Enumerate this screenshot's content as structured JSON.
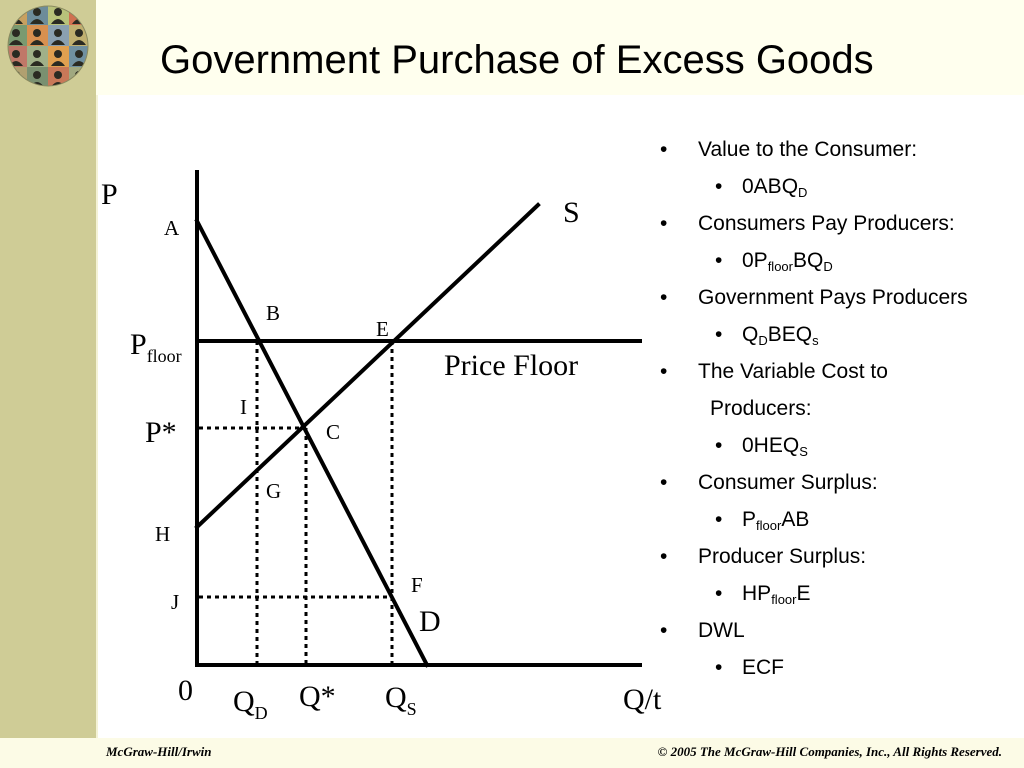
{
  "slide": {
    "title": "Government Purchase of Excess Goods",
    "footer_left": "McGraw-Hill/Irwin",
    "footer_right": "© 2005 The McGraw-Hill Companies, Inc., All Rights Reserved."
  },
  "graph": {
    "axis_y_label": "P",
    "axis_x_label": "Q/t",
    "origin_label": "0",
    "supply_label": "S",
    "demand_label": "D",
    "price_floor_label": "Price Floor",
    "p_floor_label": {
      "base": "P",
      "sub": "floor"
    },
    "p_star_label": "P*",
    "q_d_label": {
      "base": "Q",
      "sub": "D"
    },
    "q_star_label": "Q*",
    "q_s_label": {
      "base": "Q",
      "sub": "S"
    },
    "points": {
      "A": "A",
      "B": "B",
      "C": "C",
      "E": "E",
      "F": "F",
      "G": "G",
      "H": "H",
      "I": "I",
      "J": "J"
    }
  },
  "bullets": [
    {
      "level": 1,
      "text": "Value to the Consumer:"
    },
    {
      "level": 2,
      "parts": [
        {
          "t": "0ABQ"
        },
        {
          "sub": "D"
        }
      ]
    },
    {
      "level": 1,
      "text": "Consumers Pay Producers:"
    },
    {
      "level": 2,
      "parts": [
        {
          "t": "0P"
        },
        {
          "sub": "floor"
        },
        {
          "t": "BQ"
        },
        {
          "sub": "D"
        }
      ]
    },
    {
      "level": 1,
      "text": "Government Pays Producers"
    },
    {
      "level": 2,
      "parts": [
        {
          "t": "Q"
        },
        {
          "sub": "D"
        },
        {
          "t": "BEQ"
        },
        {
          "sub": "s"
        }
      ]
    },
    {
      "level": 1,
      "text": "The Variable Cost to"
    },
    {
      "level": 0,
      "text": "Producers:"
    },
    {
      "level": 2,
      "parts": [
        {
          "t": "0HEQ"
        },
        {
          "sub": "S"
        }
      ]
    },
    {
      "level": 1,
      "text": "Consumer Surplus:"
    },
    {
      "level": 2,
      "parts": [
        {
          "t": "P"
        },
        {
          "sub": "floor"
        },
        {
          "t": "AB"
        }
      ]
    },
    {
      "level": 1,
      "text": "Producer Surplus:"
    },
    {
      "level": 2,
      "parts": [
        {
          "t": "HP"
        },
        {
          "sub": "floor"
        },
        {
          "t": "E"
        }
      ]
    },
    {
      "level": 1,
      "text": "DWL"
    },
    {
      "level": 2,
      "parts": [
        {
          "t": "ECF"
        }
      ]
    }
  ]
}
